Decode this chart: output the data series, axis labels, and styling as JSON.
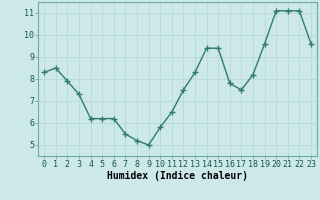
{
  "x": [
    0,
    1,
    2,
    3,
    4,
    5,
    6,
    7,
    8,
    9,
    10,
    11,
    12,
    13,
    14,
    15,
    16,
    17,
    18,
    19,
    20,
    21,
    22,
    23
  ],
  "y": [
    8.3,
    8.5,
    7.9,
    7.3,
    6.2,
    6.2,
    6.2,
    5.5,
    5.2,
    5.0,
    5.8,
    6.5,
    7.5,
    8.3,
    9.4,
    9.4,
    7.8,
    7.5,
    8.2,
    9.6,
    11.1,
    11.1,
    11.1,
    9.6
  ],
  "xlabel": "Humidex (Indice chaleur)",
  "ylim": [
    4.5,
    11.5
  ],
  "xlim": [
    -0.5,
    23.5
  ],
  "yticks": [
    5,
    6,
    7,
    8,
    9,
    10,
    11
  ],
  "xticks": [
    0,
    1,
    2,
    3,
    4,
    5,
    6,
    7,
    8,
    9,
    10,
    11,
    12,
    13,
    14,
    15,
    16,
    17,
    18,
    19,
    20,
    21,
    22,
    23
  ],
  "line_color": "#2e7d6e",
  "marker": "+",
  "bg_color": "#cce8e8",
  "grid_color": "#b8d8d8",
  "axis_bg": "#cce8e8",
  "tick_fontsize": 6,
  "xlabel_fontsize": 7,
  "marker_size": 4,
  "marker_edge_width": 1.0,
  "line_width": 1.0
}
